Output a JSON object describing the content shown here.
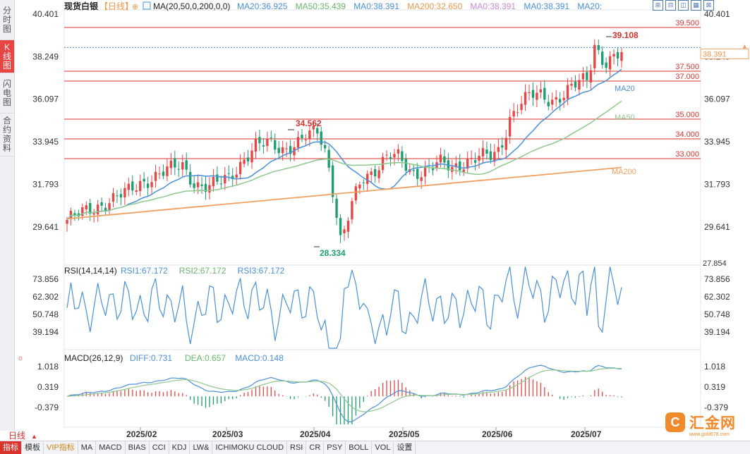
{
  "sidebar": {
    "tabs": [
      {
        "label": "分时图",
        "active": false
      },
      {
        "label": "K线图",
        "active": true
      },
      {
        "label": "闪电图",
        "active": false
      },
      {
        "label": "合约资料",
        "active": false
      }
    ]
  },
  "header": {
    "symbol": "现货白银",
    "period": "【日线】",
    "add_icon": "⊕",
    "ma_title": "MA(20,50,0,200,0,0)",
    "ma_values": [
      {
        "text": "MA20:36.925",
        "color": "#4a90d9"
      },
      {
        "text": "MA50:35.439",
        "color": "#6ab86a"
      },
      {
        "text": "MA0:38.391",
        "color": "#4a90d9"
      },
      {
        "text": "MA200:32.650",
        "color": "#f0984a"
      },
      {
        "text": "MA0:38.391",
        "color": "#c98ad8"
      },
      {
        "text": "MA0:38.391",
        "color": "#4a90d9"
      },
      {
        "text": "MA20:",
        "color": "#4a90d9"
      }
    ],
    "tool_icons": [
      "zoom-in",
      "zoom-out",
      "split",
      "settings",
      "close"
    ]
  },
  "price_axis": {
    "ticks": [
      "40.401",
      "38.249",
      "36.097",
      "33.945",
      "31.793",
      "29.641"
    ],
    "current_price": "38.391",
    "low_label": "27.854",
    "left_extra": "38.249"
  },
  "levels": [
    {
      "label": "39.500",
      "value": 39.5
    },
    {
      "label": "37.500",
      "value": 37.5
    },
    {
      "label": "37.000",
      "value": 37.0
    },
    {
      "label": "35.000",
      "value": 35.0
    },
    {
      "label": "34.000",
      "value": 34.0
    },
    {
      "label": "33.000",
      "value": 33.0
    }
  ],
  "annotations": {
    "high": "39.108",
    "mid_high": "34.562",
    "low": "28.334",
    "ma_labels": [
      "MA20",
      "MA50",
      "MA200"
    ]
  },
  "rsi": {
    "title": "RSI(14,14,14)",
    "values": [
      {
        "text": "RSI1:67.172",
        "color": "#4a90d9"
      },
      {
        "text": "RSI2:67.172",
        "color": "#6ab86a"
      },
      {
        "text": "RSI3:67.172",
        "color": "#4a90d9"
      }
    ],
    "ticks": [
      "73.856",
      "62.302",
      "50.748",
      "39.194"
    ]
  },
  "macd": {
    "title": "MACD(26,12,9)",
    "values": [
      {
        "text": "DIFF:0.731",
        "color": "#4a90d9"
      },
      {
        "text": "DEA:0.657",
        "color": "#6ab86a"
      },
      {
        "text": "MACD:0.148",
        "color": "#4a90d9"
      }
    ],
    "ticks": [
      "1.018",
      "0.319",
      "-0.379"
    ]
  },
  "x_axis": {
    "labels": [
      "2025/02",
      "2025/03",
      "2025/04",
      "2025/05",
      "2025/06",
      "2025/07"
    ]
  },
  "period_tab": {
    "label": "日线",
    "arrow": "▲"
  },
  "toolbar": {
    "items": [
      {
        "label": "指标",
        "active": true,
        "vip": false
      },
      {
        "label": "模板",
        "active": false,
        "vip": false
      },
      {
        "label": "VIP指标",
        "active": false,
        "vip": true
      },
      {
        "label": "MA",
        "active": false,
        "vip": false
      },
      {
        "label": "MACD",
        "active": false,
        "vip": false
      },
      {
        "label": "BIAS",
        "active": false,
        "vip": false
      },
      {
        "label": "CCI",
        "active": false,
        "vip": false
      },
      {
        "label": "KDJ",
        "active": false,
        "vip": false
      },
      {
        "label": "LW&",
        "active": false,
        "vip": false
      },
      {
        "label": "ICHIMOKU CLOUD",
        "active": false,
        "vip": false
      },
      {
        "label": "RSI",
        "active": false,
        "vip": false
      },
      {
        "label": "CR",
        "active": false,
        "vip": false
      },
      {
        "label": "PSY",
        "active": false,
        "vip": false
      },
      {
        "label": "BOLL",
        "active": false,
        "vip": false
      },
      {
        "label": "VOL",
        "active": false,
        "vip": false
      },
      {
        "label": "设置",
        "active": false,
        "vip": false
      }
    ]
  },
  "logo": {
    "mark": "C",
    "text": "汇金网",
    "sub": "www.gold678.com"
  },
  "colors": {
    "up": "#e84545",
    "down": "#1e9e6e",
    "level": "#d9332e",
    "ma20": "#4a90d9",
    "ma50": "#8dc98d",
    "ma200": "#f0a060"
  },
  "chart_data": {
    "type": "candlestick",
    "title": "现货白银【日线】",
    "ylim": [
      27.854,
      40.401
    ],
    "approx_series": {
      "close_path": [
        {
          "x": "2025/01/20",
          "y": 30.0
        },
        {
          "x": "2025/02/03",
          "y": 30.6
        },
        {
          "x": "2025/02/10",
          "y": 31.9
        },
        {
          "x": "2025/02/17",
          "y": 32.8
        },
        {
          "x": "2025/02/24",
          "y": 31.6
        },
        {
          "x": "2025/03/03",
          "y": 32.2
        },
        {
          "x": "2025/03/10",
          "y": 33.7
        },
        {
          "x": "2025/03/17",
          "y": 33.8
        },
        {
          "x": "2025/03/24",
          "y": 34.1
        },
        {
          "x": "2025/03/28",
          "y": 34.5
        },
        {
          "x": "2025/04/03",
          "y": 32.2
        },
        {
          "x": "2025/04/07",
          "y": 28.8
        },
        {
          "x": "2025/04/14",
          "y": 32.2
        },
        {
          "x": "2025/04/21",
          "y": 32.9
        },
        {
          "x": "2025/05/05",
          "y": 32.8
        },
        {
          "x": "2025/05/15",
          "y": 32.3
        },
        {
          "x": "2025/05/26",
          "y": 33.3
        },
        {
          "x": "2025/06/05",
          "y": 35.8
        },
        {
          "x": "2025/06/16",
          "y": 36.3
        },
        {
          "x": "2025/06/30",
          "y": 36.0
        },
        {
          "x": "2025/07/10",
          "y": 37.0
        },
        {
          "x": "2025/07/14",
          "y": 38.4
        },
        {
          "x": "2025/07/21",
          "y": 38.4
        }
      ]
    }
  }
}
